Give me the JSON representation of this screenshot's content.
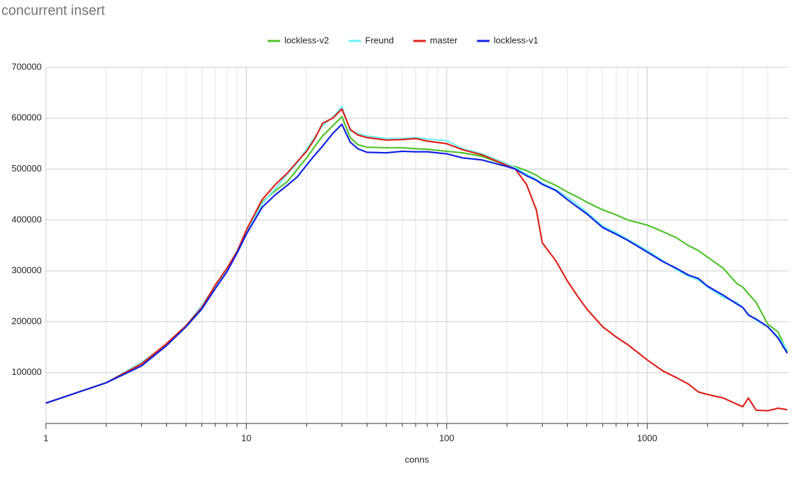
{
  "chart_data": {
    "type": "line",
    "title": "concurrent insert",
    "x_label": "conns",
    "xscale": "log",
    "xlim": [
      1,
      5000
    ],
    "xticks": [
      1,
      10,
      100,
      1000
    ],
    "xminorticks": [
      2,
      3,
      4,
      5,
      6,
      7,
      8,
      9,
      20,
      30,
      40,
      50,
      60,
      70,
      80,
      90,
      200,
      300,
      400,
      500,
      600,
      700,
      800,
      900,
      2000,
      3000,
      4000
    ],
    "ylim": [
      0,
      700000
    ],
    "yticks": [
      100000,
      200000,
      300000,
      400000,
      500000,
      600000,
      700000
    ],
    "grid": true,
    "legend": "top",
    "x": [
      1,
      2,
      3,
      4,
      5,
      6,
      7,
      8,
      9,
      10,
      12,
      14,
      16,
      18,
      20,
      22,
      24,
      27,
      30,
      33,
      36,
      40,
      50,
      60,
      70,
      80,
      100,
      120,
      150,
      200,
      220,
      250,
      280,
      300,
      350,
      400,
      450,
      500,
      600,
      700,
      800,
      1000,
      1200,
      1400,
      1600,
      1800,
      2000,
      2400,
      2800,
      3000,
      3200,
      3500,
      4000,
      4500,
      5000
    ],
    "series": [
      {
        "name": "lockless-v2",
        "color": "#4ec22a",
        "values": [
          40000,
          80000,
          117000,
          155000,
          190000,
          228000,
          268000,
          302000,
          338000,
          375000,
          435000,
          458000,
          475000,
          500000,
          522000,
          545000,
          565000,
          585000,
          603000,
          562000,
          548000,
          543000,
          542000,
          542000,
          540000,
          539000,
          535000,
          532000,
          525000,
          507000,
          505000,
          497000,
          488000,
          480000,
          468000,
          455000,
          445000,
          435000,
          420000,
          410000,
          400000,
          390000,
          377000,
          365000,
          350000,
          340000,
          327000,
          305000,
          275000,
          268000,
          255000,
          238000,
          195000,
          180000,
          140000
        ]
      },
      {
        "name": "Freund",
        "color": "#6ef0f5",
        "values": [
          40000,
          80000,
          120000,
          155000,
          192000,
          232000,
          270000,
          302000,
          340000,
          375000,
          432000,
          462000,
          490000,
          512000,
          540000,
          563000,
          585000,
          602000,
          623000,
          575000,
          570000,
          565000,
          560000,
          560000,
          562000,
          559000,
          556000,
          540000,
          530000,
          510000,
          503000,
          490000,
          480000,
          472000,
          460000,
          445000,
          430000,
          415000,
          388000,
          375000,
          362000,
          340000,
          320000,
          302000,
          290000,
          282000,
          268000,
          248000,
          238000,
          228000,
          215000,
          203000,
          190000,
          170000,
          145000
        ]
      },
      {
        "name": "master",
        "color": "#e0201a",
        "values": [
          40000,
          80000,
          117000,
          157000,
          192000,
          228000,
          272000,
          305000,
          338000,
          380000,
          440000,
          470000,
          492000,
          515000,
          535000,
          560000,
          590000,
          600000,
          618000,
          578000,
          567000,
          562000,
          557000,
          558000,
          560000,
          555000,
          550000,
          538000,
          528000,
          507000,
          500000,
          470000,
          420000,
          355000,
          320000,
          280000,
          250000,
          225000,
          190000,
          170000,
          155000,
          125000,
          103000,
          90000,
          78000,
          62000,
          57000,
          50000,
          38000,
          33000,
          50000,
          26000,
          25000,
          30000,
          27000
        ]
      },
      {
        "name": "lockless-v1",
        "color": "#1020e0",
        "values": [
          40000,
          80000,
          113000,
          153000,
          190000,
          225000,
          265000,
          298000,
          335000,
          372000,
          425000,
          450000,
          468000,
          485000,
          508000,
          528000,
          545000,
          570000,
          588000,
          553000,
          540000,
          533000,
          532000,
          535000,
          534000,
          534000,
          530000,
          522000,
          518000,
          505000,
          500000,
          487000,
          478000,
          470000,
          458000,
          440000,
          425000,
          412000,
          385000,
          372000,
          360000,
          337000,
          318000,
          305000,
          292000,
          285000,
          270000,
          252000,
          235000,
          228000,
          213000,
          205000,
          190000,
          168000,
          138000
        ]
      }
    ]
  }
}
